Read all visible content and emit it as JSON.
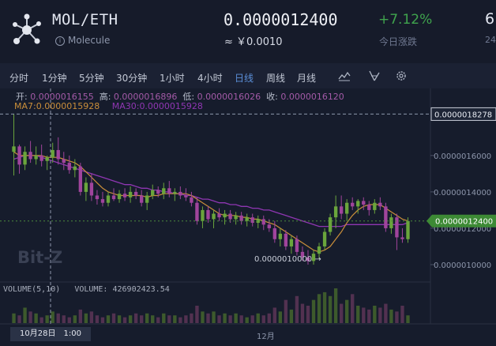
{
  "header": {
    "pair": "MOL/ETH",
    "coin_name": "Molecule",
    "info_icon": "i",
    "price": "0.0000012400",
    "cny_price": "≈ ￥0.0010",
    "change": "+7.12%",
    "change_label": "今日涨跌",
    "cut_value": "6",
    "cut_label": "24"
  },
  "toolbar": {
    "tabs": [
      {
        "label": "分时"
      },
      {
        "label": "1分钟"
      },
      {
        "label": "5分钟"
      },
      {
        "label": "30分钟"
      },
      {
        "label": "1小时"
      },
      {
        "label": "4小时"
      },
      {
        "label": "日线"
      },
      {
        "label": "周线"
      },
      {
        "label": "月线"
      }
    ],
    "active_tab": "日线",
    "icons": [
      "indicator-icon",
      "draw-tool-icon",
      "settings-icon"
    ]
  },
  "legend": {
    "open_label": "开:",
    "open": "0.0000016155",
    "high_label": "高:",
    "high": "0.0000016896",
    "low_label": "低:",
    "low": "0.0000016026",
    "close_label": "收:",
    "close": "0.0000016120",
    "ma7_label": "MA7:",
    "ma7": "0.0000015928",
    "ma30_label": "MA30:",
    "ma30": "0.0000015928"
  },
  "colors": {
    "up": "#6aa53c",
    "down": "#a0449c",
    "ma7": "#c98e3a",
    "ma30": "#8f36b2",
    "price_tag": "#3d8a35"
  },
  "chart_data": {
    "type": "candlestick",
    "y_ticks": [
      "0.0000016000",
      "0.0000014000",
      "0.0000012000",
      "0.0000010000"
    ],
    "crosshair_price": "0.0000018278",
    "current_price": "0.0000012400",
    "min_label": "0.0000010000 →",
    "x_ticks": [
      "10月28日　1:00",
      "12月"
    ],
    "volume_label": "VOLUME(5,10)",
    "volume_text": "VOLUME:",
    "volume_value": "426902423.54",
    "watermark": "Bit-Z",
    "candles": [
      [
        1.62e-06,
        1.83e-06,
        1.49e-06,
        1.65e-06
      ],
      [
        1.65e-06,
        1.66e-06,
        1.5e-06,
        1.55e-06
      ],
      [
        1.55e-06,
        1.65e-06,
        1.52e-06,
        1.62e-06
      ],
      [
        1.62e-06,
        1.68e-06,
        1.56e-06,
        1.58e-06
      ],
      [
        1.58e-06,
        1.65e-06,
        1.55e-06,
        1.6e-06
      ],
      [
        1.6e-06,
        1.66e-06,
        1.54e-06,
        1.57e-06
      ],
      [
        1.57e-06,
        1.6e-06,
        1.52e-06,
        1.59e-06
      ],
      [
        1.59e-06,
        1.67e-06,
        1.56e-06,
        1.63e-06
      ],
      [
        1.63e-06,
        1.7e-06,
        1.55e-06,
        1.58e-06
      ],
      [
        1.58e-06,
        1.62e-06,
        1.52e-06,
        1.56e-06
      ],
      [
        1.56e-06,
        1.6e-06,
        1.5e-06,
        1.52e-06
      ],
      [
        1.52e-06,
        1.58e-06,
        1.48e-06,
        1.54e-06
      ],
      [
        1.54e-06,
        1.56e-06,
        1.38e-06,
        1.4e-06
      ],
      [
        1.4e-06,
        1.48e-06,
        1.35e-06,
        1.45e-06
      ],
      [
        1.45e-06,
        1.5e-06,
        1.35e-06,
        1.38e-06
      ],
      [
        1.38e-06,
        1.41e-06,
        1.33e-06,
        1.36e-06
      ],
      [
        1.36e-06,
        1.4e-06,
        1.32e-06,
        1.34e-06
      ],
      [
        1.34e-06,
        1.4e-06,
        1.32e-06,
        1.38e-06
      ],
      [
        1.38e-06,
        1.42e-06,
        1.35e-06,
        1.36e-06
      ],
      [
        1.36e-06,
        1.41e-06,
        1.34e-06,
        1.39e-06
      ],
      [
        1.39e-06,
        1.42e-06,
        1.35e-06,
        1.37e-06
      ],
      [
        1.37e-06,
        1.43e-06,
        1.34e-06,
        1.4e-06
      ],
      [
        1.4e-06,
        1.42e-06,
        1.36e-06,
        1.38e-06
      ],
      [
        1.38e-06,
        1.41e-06,
        1.32e-06,
        1.34e-06
      ],
      [
        1.34e-06,
        1.4e-06,
        1.3e-06,
        1.38e-06
      ],
      [
        1.38e-06,
        1.44e-06,
        1.36e-06,
        1.41e-06
      ],
      [
        1.41e-06,
        1.43e-06,
        1.37e-06,
        1.39e-06
      ],
      [
        1.39e-06,
        1.45e-06,
        1.36e-06,
        1.42e-06
      ],
      [
        1.42e-06,
        1.46e-06,
        1.37e-06,
        1.39e-06
      ],
      [
        1.39e-06,
        1.42e-06,
        1.35e-06,
        1.4e-06
      ],
      [
        1.4e-06,
        1.43e-06,
        1.36e-06,
        1.38e-06
      ],
      [
        1.38e-06,
        1.42e-06,
        1.35e-06,
        1.37e-06
      ],
      [
        1.37e-06,
        1.4e-06,
        1.32e-06,
        1.34e-06
      ],
      [
        1.34e-06,
        1.37e-06,
        1.22e-06,
        1.24e-06
      ],
      [
        1.24e-06,
        1.32e-06,
        1.2e-06,
        1.3e-06
      ],
      [
        1.3e-06,
        1.32e-06,
        1.23e-06,
        1.25e-06
      ],
      [
        1.25e-06,
        1.3e-06,
        1.2e-06,
        1.28e-06
      ],
      [
        1.28e-06,
        1.31e-06,
        1.24e-06,
        1.26e-06
      ],
      [
        1.26e-06,
        1.3e-06,
        1.22e-06,
        1.28e-06
      ],
      [
        1.28e-06,
        1.3e-06,
        1.23e-06,
        1.25e-06
      ],
      [
        1.25e-06,
        1.29e-06,
        1.22e-06,
        1.27e-06
      ],
      [
        1.27e-06,
        1.29e-06,
        1.22e-06,
        1.24e-06
      ],
      [
        1.24e-06,
        1.28e-06,
        1.21e-06,
        1.26e-06
      ],
      [
        1.26e-06,
        1.28e-06,
        1.21e-06,
        1.23e-06
      ],
      [
        1.23e-06,
        1.27e-06,
        1.2e-06,
        1.25e-06
      ],
      [
        1.25e-06,
        1.27e-06,
        1.19e-06,
        1.22e-06
      ],
      [
        1.22e-06,
        1.25e-06,
        1.18e-06,
        1.2e-06
      ],
      [
        1.2e-06,
        1.24e-06,
        1.12e-06,
        1.14e-06
      ],
      [
        1.14e-06,
        1.2e-06,
        1.1e-06,
        1.17e-06
      ],
      [
        1.17e-06,
        1.19e-06,
        1.08e-06,
        1.1e-06
      ],
      [
        1.1e-06,
        1.16e-06,
        1.06e-06,
        1.14e-06
      ],
      [
        1.14e-06,
        1.16e-06,
        1.05e-06,
        1.07e-06
      ],
      [
        1.07e-06,
        1.1e-06,
        1.02e-06,
        1.04e-06
      ],
      [
        1.04e-06,
        1.08e-06,
        1e-06,
        1.02e-06
      ],
      [
        1.02e-06,
        1.08e-06,
        1e-06,
        1.06e-06
      ],
      [
        1.06e-06,
        1.12e-06,
        1.03e-06,
        1.1e-06
      ],
      [
        1.1e-06,
        1.2e-06,
        1.08e-06,
        1.18e-06
      ],
      [
        1.18e-06,
        1.28e-06,
        1.16e-06,
        1.26e-06
      ],
      [
        1.26e-06,
        1.38e-06,
        1.2e-06,
        1.32e-06
      ],
      [
        1.32e-06,
        1.38e-06,
        1.25e-06,
        1.28e-06
      ],
      [
        1.28e-06,
        1.36e-06,
        1.24e-06,
        1.34e-06
      ],
      [
        1.34e-06,
        1.37e-06,
        1.3e-06,
        1.32e-06
      ],
      [
        1.32e-06,
        1.36e-06,
        1.28e-06,
        1.35e-06
      ],
      [
        1.35e-06,
        1.37e-06,
        1.3e-06,
        1.33e-06
      ],
      [
        1.33e-06,
        1.35e-06,
        1.27e-06,
        1.3e-06
      ],
      [
        1.3e-06,
        1.36e-06,
        1.28e-06,
        1.34e-06
      ],
      [
        1.34e-06,
        1.37e-06,
        1.3e-06,
        1.32e-06
      ],
      [
        1.32e-06,
        1.34e-06,
        1.18e-06,
        1.2e-06
      ],
      [
        1.2e-06,
        1.28e-06,
        1.17e-06,
        1.26e-06
      ],
      [
        1.26e-06,
        1.28e-06,
        1.08e-06,
        1.15e-06
      ],
      [
        1.15e-06,
        1.2e-06,
        1.12e-06,
        1.14e-06
      ],
      [
        1.14e-06,
        1.26e-06,
        1.12e-06,
        1.24e-06
      ]
    ],
    "ma7": [
      1.62e-06,
      1.6e-06,
      1.6e-06,
      1.6e-06,
      1.6e-06,
      1.6e-06,
      1.59e-06,
      1.59e-06,
      1.59e-06,
      1.58e-06,
      1.57e-06,
      1.56e-06,
      1.54e-06,
      1.51e-06,
      1.48e-06,
      1.45e-06,
      1.42e-06,
      1.4e-06,
      1.39e-06,
      1.38e-06,
      1.38e-06,
      1.38e-06,
      1.38e-06,
      1.38e-06,
      1.37e-06,
      1.38e-06,
      1.38e-06,
      1.39e-06,
      1.39e-06,
      1.39e-06,
      1.39e-06,
      1.39e-06,
      1.38e-06,
      1.36e-06,
      1.34e-06,
      1.32e-06,
      1.3e-06,
      1.28e-06,
      1.27e-06,
      1.27e-06,
      1.27e-06,
      1.26e-06,
      1.26e-06,
      1.25e-06,
      1.25e-06,
      1.24e-06,
      1.23e-06,
      1.22e-06,
      1.2e-06,
      1.18e-06,
      1.16e-06,
      1.14e-06,
      1.12e-06,
      1.1e-06,
      1.08e-06,
      1.07e-06,
      1.08e-06,
      1.1e-06,
      1.14e-06,
      1.18e-06,
      1.23e-06,
      1.27e-06,
      1.3e-06,
      1.32e-06,
      1.33e-06,
      1.33e-06,
      1.33e-06,
      1.31e-06,
      1.29e-06,
      1.27e-06,
      1.25e-06,
      1.24e-06
    ],
    "ma30": [
      1.58e-06,
      1.59e-06,
      1.6e-06,
      1.6e-06,
      1.6e-06,
      1.59e-06,
      1.58e-06,
      1.57e-06,
      1.56e-06,
      1.55e-06,
      1.54e-06,
      1.53e-06,
      1.52e-06,
      1.51e-06,
      1.5e-06,
      1.49e-06,
      1.48e-06,
      1.47e-06,
      1.46e-06,
      1.45e-06,
      1.44e-06,
      1.44e-06,
      1.43e-06,
      1.42e-06,
      1.42e-06,
      1.41e-06,
      1.41e-06,
      1.4e-06,
      1.4e-06,
      1.39e-06,
      1.39e-06,
      1.38e-06,
      1.38e-06,
      1.37e-06,
      1.36e-06,
      1.36e-06,
      1.35e-06,
      1.34e-06,
      1.34e-06,
      1.33e-06,
      1.33e-06,
      1.32e-06,
      1.32e-06,
      1.31e-06,
      1.31e-06,
      1.3e-06,
      1.3e-06,
      1.29e-06,
      1.28e-06,
      1.27e-06,
      1.26e-06,
      1.25e-06,
      1.24e-06,
      1.23e-06,
      1.22e-06,
      1.21e-06,
      1.21e-06,
      1.21e-06,
      1.21e-06,
      1.21e-06,
      1.22e-06,
      1.22e-06,
      1.22e-06,
      1.22e-06,
      1.22e-06,
      1.22e-06,
      1.22e-06,
      1.22e-06,
      1.22e-06,
      1.22e-06,
      1.22e-06,
      1.23e-06
    ],
    "volume": [
      5,
      4,
      8,
      6,
      5,
      3,
      4,
      6,
      5,
      4,
      3,
      4,
      7,
      5,
      6,
      4,
      3,
      4,
      5,
      4,
      3,
      4,
      5,
      4,
      5,
      4,
      3,
      5,
      4,
      4,
      3,
      4,
      5,
      9,
      6,
      5,
      6,
      4,
      5,
      4,
      5,
      4,
      3,
      4,
      5,
      4,
      5,
      8,
      6,
      12,
      7,
      14,
      10,
      9,
      12,
      15,
      16,
      14,
      18,
      10,
      12,
      15,
      9,
      8,
      7,
      9,
      8,
      10,
      7,
      6,
      9,
      4
    ],
    "y_range": [
      9e-07,
      1.86e-06
    ]
  }
}
